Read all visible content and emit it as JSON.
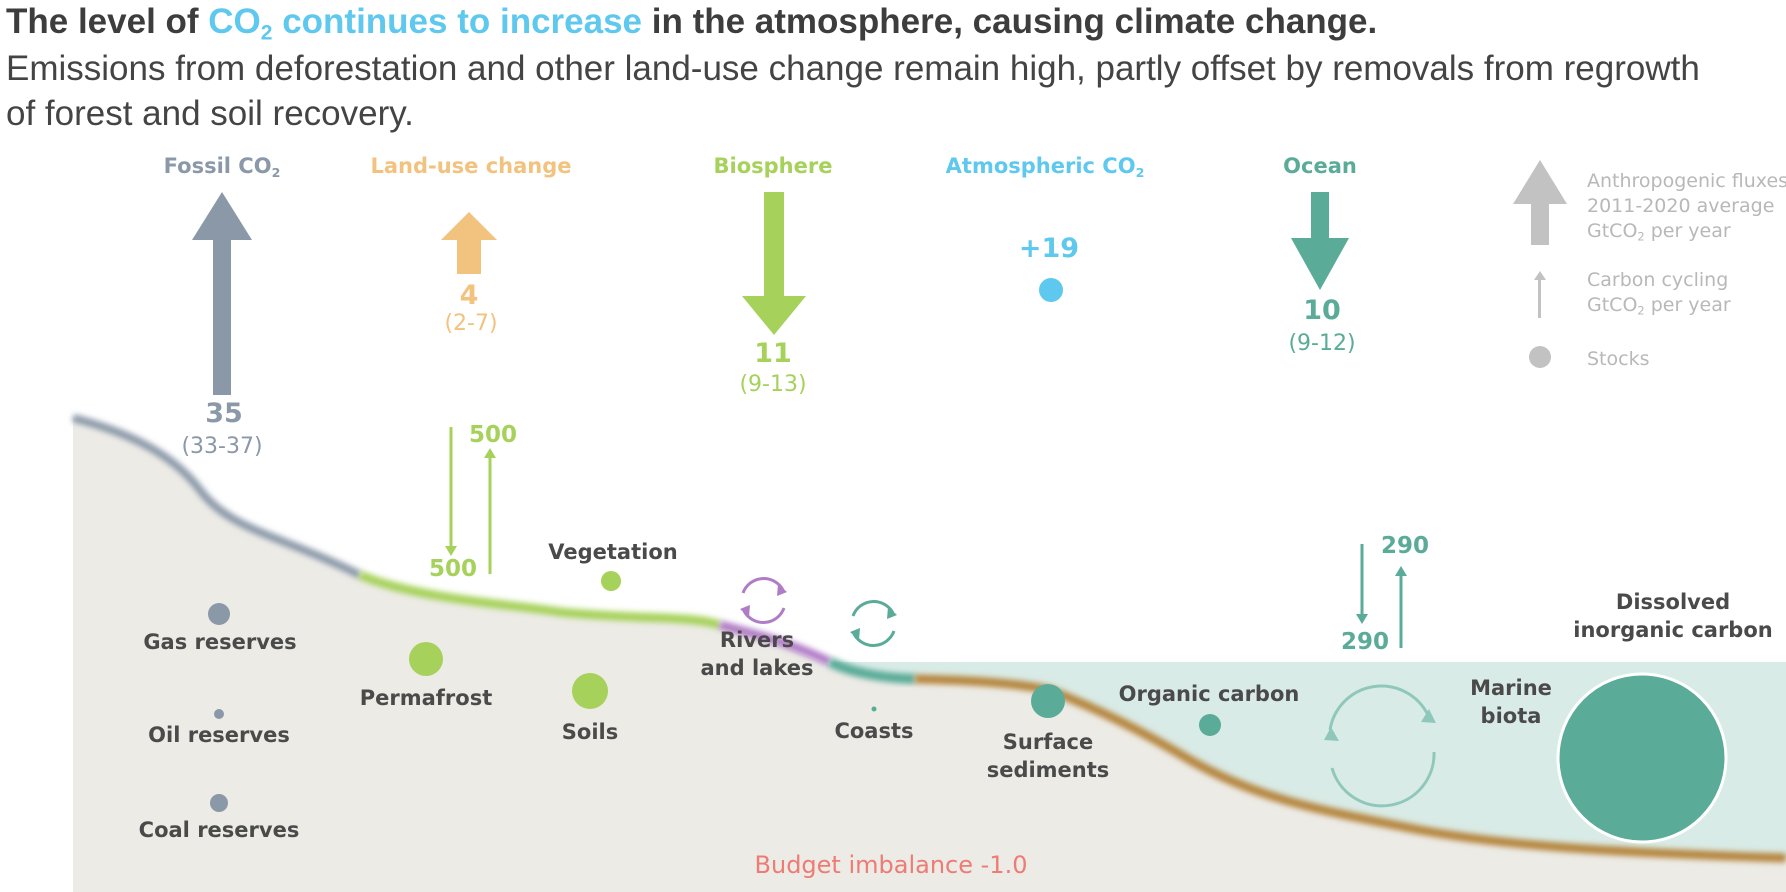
{
  "title": {
    "part1": "The level of ",
    "highlight_base": "CO",
    "highlight_sub": "2",
    "highlight_rest": " continues to increase",
    "part2": " in the atmosphere, causing climate change."
  },
  "subtitle": "Emissions from deforestation and other land-use change remain high, partly offset by removals from regrowth of forest and soil recovery.",
  "fluxes": {
    "fossil": {
      "label_base": "Fossil CO",
      "label_sub": "2",
      "value": "35",
      "range": "(33-37)",
      "color": "#8a98a8"
    },
    "land_use": {
      "label": "Land-use change",
      "value": "4",
      "range": "(2-7)",
      "color": "#f2c27f"
    },
    "biosphere": {
      "label": "Biosphere",
      "value": "11",
      "range": "(9-13)",
      "color": "#a6d15a"
    },
    "atmosphere": {
      "label_base": "Atmospheric CO",
      "label_sub": "2",
      "value": "+19",
      "color": "#5ec8ee"
    },
    "ocean": {
      "label": "Ocean",
      "value": "10",
      "range": "(9-12)",
      "color": "#5aab98"
    }
  },
  "legend": {
    "anthropogenic_line1": "Anthropogenic fluxes",
    "anthropogenic_line2": "2011-2020 average",
    "anthropogenic_line3_base": "GtCO",
    "anthropogenic_line3_sub": "2",
    "anthropogenic_line3_rest": " per year",
    "cycling_line1": "Carbon cycling",
    "cycling_line2_base": "GtCO",
    "cycling_line2_sub": "2",
    "cycling_line2_rest": " per year",
    "stocks": "Stocks"
  },
  "land_cycling": {
    "down": "500",
    "up": "500"
  },
  "ocean_cycling": {
    "down": "290",
    "up": "290"
  },
  "stocks": {
    "gas": "Gas reserves",
    "oil": "Oil reserves",
    "coal": "Coal reserves",
    "permafrost": "Permafrost",
    "vegetation": "Vegetation",
    "soils": "Soils",
    "rivers_line1": "Rivers",
    "rivers_line2": "and lakes",
    "coasts": "Coasts",
    "surface_line1": "Surface",
    "surface_line2": "sediments",
    "organic": "Organic carbon",
    "marine_line1": "Marine",
    "marine_line2": "biota",
    "dissolved_line1": "Dissolved",
    "dissolved_line2": "inorganic carbon"
  },
  "budget_imbalance": "Budget imbalance -1.0",
  "colors": {
    "land": "#ecebe6",
    "ocean": "#d9ebe7",
    "fossil_grey": "#8a98a8",
    "green": "#a6d15a",
    "ocean_teal": "#5aab98",
    "purple": "#b07cc6",
    "sediment": "#b5853e",
    "budget": "#ee7b74",
    "legend_grey": "#c2c2c2"
  }
}
